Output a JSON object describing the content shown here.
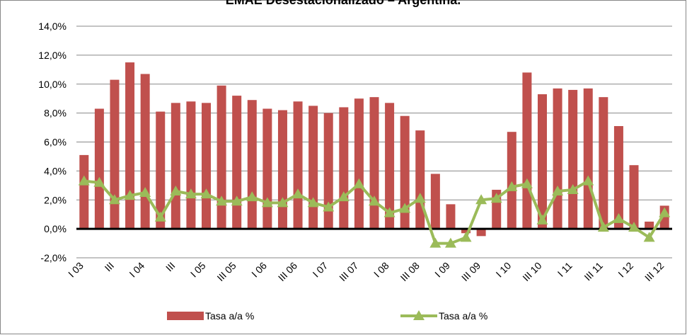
{
  "chart_data": {
    "type": "bar_line",
    "title": "EMAE Desestacionalizado – Argentina.",
    "categories": [
      "I 03",
      null,
      "III",
      null,
      "I 04",
      null,
      "III",
      null,
      "I 05",
      null,
      "III 05",
      null,
      "I 06",
      null,
      "III 06",
      null,
      "I 07",
      null,
      "III 07",
      null,
      "I 08",
      null,
      "III 08",
      null,
      "I 09",
      null,
      "III 09",
      null,
      "I 10",
      null,
      "III 10",
      null,
      "I 11",
      null,
      "III 11",
      null,
      "I 12",
      null,
      "III 12"
    ],
    "series": [
      {
        "name": "Tasa a/a %",
        "type": "bar",
        "color": "#c0504d",
        "values": [
          5.1,
          8.3,
          10.3,
          11.5,
          10.7,
          8.1,
          8.7,
          8.8,
          8.7,
          9.9,
          9.2,
          8.9,
          8.3,
          8.2,
          8.8,
          8.5,
          8.0,
          8.4,
          9.0,
          9.1,
          8.7,
          7.8,
          6.8,
          3.8,
          1.7,
          -0.3,
          -0.5,
          2.7,
          6.7,
          10.8,
          9.3,
          9.7,
          9.6,
          9.7,
          9.1,
          7.1,
          4.4,
          0.5,
          1.6
        ]
      },
      {
        "name": "Tasa a/a %",
        "type": "line",
        "color": "#9bbb59",
        "values": [
          3.3,
          3.2,
          2.0,
          2.3,
          2.5,
          0.8,
          2.6,
          2.4,
          2.4,
          1.9,
          1.9,
          2.2,
          1.8,
          1.8,
          2.4,
          1.8,
          1.5,
          2.2,
          3.1,
          1.9,
          1.1,
          1.4,
          2.1,
          -1.0,
          -1.0,
          -0.6,
          2.0,
          2.1,
          2.9,
          3.1,
          0.6,
          2.6,
          2.7,
          3.3,
          0.1,
          0.7,
          0.1,
          -0.6,
          1.1
        ]
      }
    ],
    "ylim": [
      -2,
      14
    ],
    "yticks": [
      {
        "value": -2,
        "label": "-2,0%"
      },
      {
        "value": 0,
        "label": "0,0%"
      },
      {
        "value": 2,
        "label": "2,0%"
      },
      {
        "value": 4,
        "label": "4,0%"
      },
      {
        "value": 6,
        "label": "6,0%"
      },
      {
        "value": 8,
        "label": "8,0%"
      },
      {
        "value": 10,
        "label": "10,0%"
      },
      {
        "value": 12,
        "label": "12,0%"
      },
      {
        "value": 14,
        "label": "14,0%"
      }
    ],
    "grid": true,
    "legend": "bottom"
  }
}
